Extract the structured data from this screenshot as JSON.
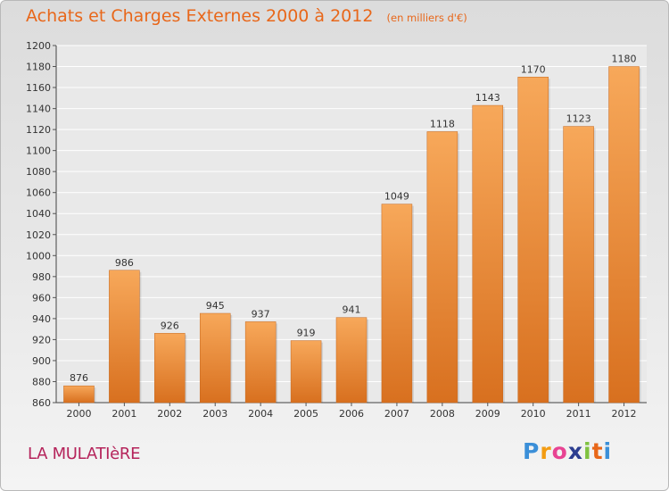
{
  "title": "Achats et Charges Externes 2000 à 2012",
  "unit": "(en milliers d'€)",
  "commune": "LA MULATIèRE",
  "logo": {
    "letters": [
      "P",
      "r",
      "o",
      "x",
      "i",
      "t",
      "i"
    ],
    "colors": [
      "#3b8fd8",
      "#f39c12",
      "#e84393",
      "#2c3e90",
      "#7fc241",
      "#e8671a",
      "#3b8fd8"
    ]
  },
  "colors": {
    "title": "#e8671a",
    "commune": "#b5245b",
    "bar_top": "#f7a85a",
    "bar_bottom": "#d8701f"
  },
  "chart_data": {
    "type": "bar",
    "title": "Achats et Charges Externes 2000 à 2012",
    "subtitle": "(en milliers d'€)",
    "categories": [
      "2000",
      "2001",
      "2002",
      "2003",
      "2004",
      "2005",
      "2006",
      "2007",
      "2008",
      "2009",
      "2010",
      "2011",
      "2012"
    ],
    "values": [
      876,
      986,
      926,
      945,
      937,
      919,
      941,
      1049,
      1118,
      1143,
      1170,
      1123,
      1180
    ],
    "ylim": [
      860,
      1200
    ],
    "yticks": [
      860,
      880,
      900,
      920,
      940,
      960,
      980,
      1000,
      1020,
      1040,
      1060,
      1080,
      1100,
      1120,
      1140,
      1160,
      1180,
      1200
    ],
    "grid": true,
    "data_labels": true
  }
}
